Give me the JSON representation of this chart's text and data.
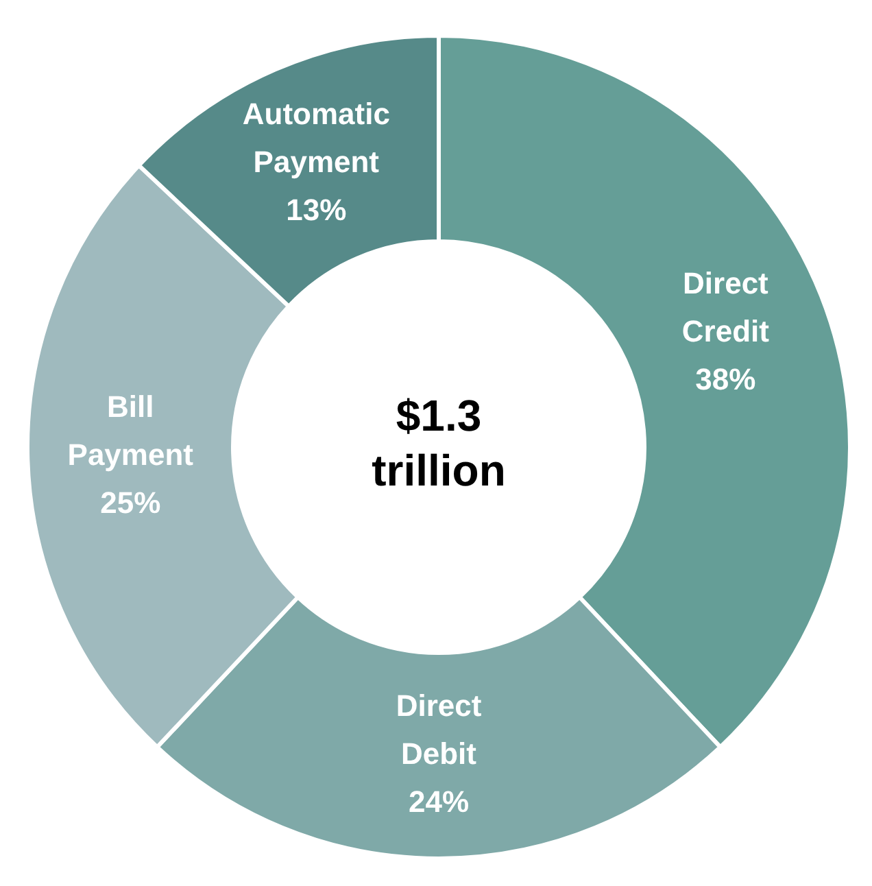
{
  "chart_data": {
    "type": "donut",
    "categories": [
      "Direct Credit",
      "Direct Debit",
      "Bill Payment",
      "Automatic Payment"
    ],
    "values": [
      38,
      24,
      25,
      13
    ],
    "colors": [
      "#659e97",
      "#7fa9a8",
      "#9fbabe",
      "#568a89"
    ],
    "value_labels": [
      "38%",
      "24%",
      "25%",
      "13%"
    ],
    "annotations": [
      "$1.3 trillion"
    ]
  }
}
